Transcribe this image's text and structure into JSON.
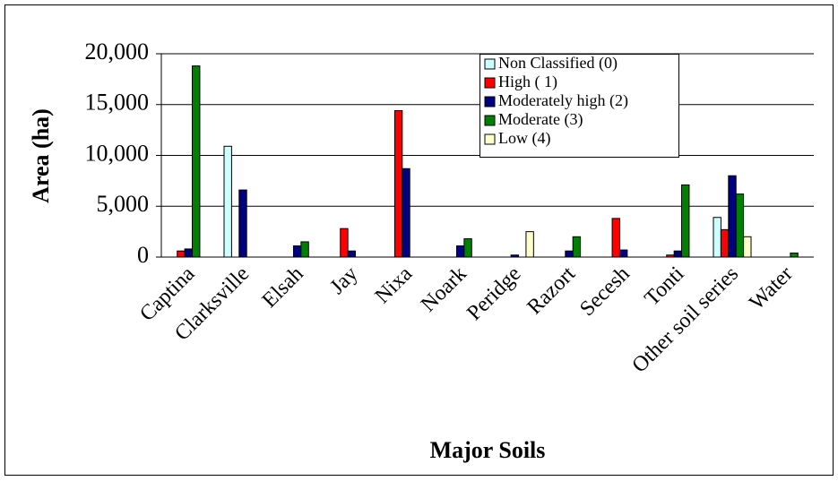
{
  "chart_data": {
    "type": "bar",
    "categories": [
      "Captina",
      "Clarksville",
      "Elsah",
      "Jay",
      "Nixa",
      "Noark",
      "Peridge",
      "Razort",
      "Secesh",
      "Tonti",
      "Other soil series",
      "Water"
    ],
    "series": [
      {
        "name": "Non Classified (0)",
        "color": "#ccffff",
        "values": [
          0,
          10900,
          0,
          0,
          0,
          0,
          0,
          0,
          0,
          0,
          3900,
          0
        ]
      },
      {
        "name": "High ( 1)",
        "color": "#ff0000",
        "values": [
          600,
          0,
          0,
          2800,
          14400,
          0,
          0,
          0,
          3800,
          200,
          2700,
          0
        ]
      },
      {
        "name": "Moderately high (2)",
        "color": "#000080",
        "values": [
          800,
          6600,
          1100,
          600,
          8700,
          1100,
          200,
          600,
          700,
          600,
          8000,
          0
        ]
      },
      {
        "name": "Moderate (3)",
        "color": "#008000",
        "values": [
          18800,
          0,
          1500,
          0,
          0,
          1800,
          0,
          2000,
          0,
          7100,
          6200,
          400
        ]
      },
      {
        "name": "Low (4)",
        "color": "#ffffcc",
        "values": [
          0,
          0,
          0,
          0,
          0,
          0,
          2500,
          0,
          0,
          0,
          2000,
          0
        ]
      }
    ],
    "xlabel": "Major Soils",
    "ylabel": "Area (ha)",
    "ylim": [
      0,
      20000
    ],
    "yticks": [
      0,
      {
        "value": 5000,
        "label": "5,000"
      },
      {
        "value": 10000,
        "label": "10,000"
      },
      {
        "value": 15000,
        "label": "15,000"
      },
      {
        "value": 20000,
        "label": "20,000"
      }
    ],
    "grid": true,
    "legend": "upper right"
  }
}
